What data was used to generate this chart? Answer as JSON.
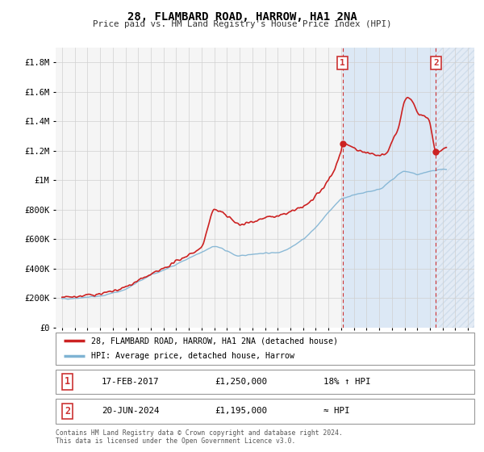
{
  "title": "28, FLAMBARD ROAD, HARROW, HA1 2NA",
  "subtitle": "Price paid vs. HM Land Registry's House Price Index (HPI)",
  "legend_line1": "28, FLAMBARD ROAD, HARROW, HA1 2NA (detached house)",
  "legend_line2": "HPI: Average price, detached house, Harrow",
  "annotation1_date": "17-FEB-2017",
  "annotation1_price": "£1,250,000",
  "annotation1_hpi": "18% ↑ HPI",
  "annotation2_date": "20-JUN-2024",
  "annotation2_price": "£1,195,000",
  "annotation2_hpi": "≈ HPI",
  "footer1": "Contains HM Land Registry data © Crown copyright and database right 2024.",
  "footer2": "This data is licensed under the Open Government Licence v3.0.",
  "line_color_red": "#cc2222",
  "line_color_blue": "#7fb3d3",
  "marker_color_red": "#cc2222",
  "annotation_box_color": "#cc3333",
  "vline_color": "#cc3333",
  "shade_color": "#dce8f5",
  "hatch_color": "#c8d8e8",
  "grid_color": "#d0d0d0",
  "bg_color": "#f0f0f0",
  "plot_bg": "#f5f5f5",
  "ylim_max": 1900000,
  "xlim_start": 1994.5,
  "xlim_end": 2027.5,
  "sale1_x": 2017.12,
  "sale1_y": 1250000,
  "sale2_x": 2024.47,
  "sale2_y": 1195000,
  "shade_x1": 2017.12,
  "shade_x2": 2024.47,
  "hatch_x1": 2024.47,
  "hatch_x2": 2027.5,
  "yticks": [
    0,
    200000,
    400000,
    600000,
    800000,
    1000000,
    1200000,
    1400000,
    1600000,
    1800000
  ],
  "ytick_labels": [
    "£0",
    "£200K",
    "£400K",
    "£600K",
    "£800K",
    "£1M",
    "£1.2M",
    "£1.4M",
    "£1.6M",
    "£1.8M"
  ]
}
